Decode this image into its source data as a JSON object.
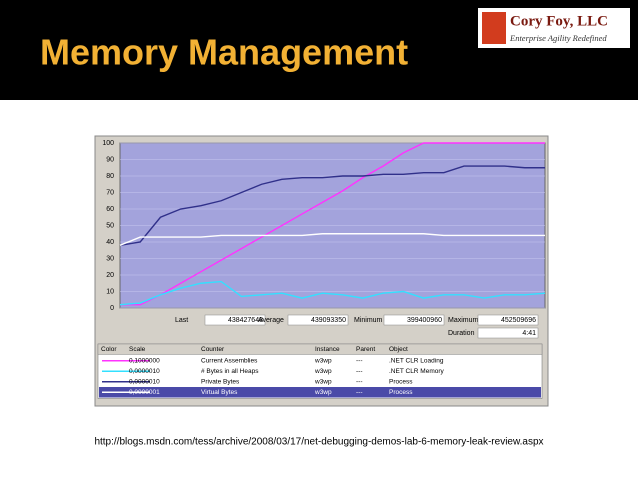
{
  "slide": {
    "title": "Memory Management",
    "logo": {
      "name": "Cory Foy, LLC",
      "tagline": "Enterprise Agility Redefined"
    },
    "url": "http://blogs.msdn.com/tess/archive/2008/03/17/net-debugging-demos-lab-6-memory-leak-review.aspx"
  },
  "chart_data": {
    "type": "line",
    "ylim": [
      0,
      100
    ],
    "yticks": [
      0,
      10,
      20,
      30,
      40,
      50,
      60,
      70,
      80,
      90,
      100
    ],
    "grid": true,
    "background": "#a3a3dc",
    "categories": [
      null,
      null,
      null,
      null,
      null,
      null,
      null,
      null,
      null,
      null,
      null,
      null,
      null,
      null,
      null,
      null,
      null,
      null,
      null,
      null,
      null,
      null
    ],
    "series": [
      {
        "name": "Current Assemblies",
        "color": "#ff33ff",
        "scale": "0,1000000",
        "instance": "w3wp",
        "parent": "---",
        "object": ".NET CLR Loading",
        "values": [
          2,
          2,
          8,
          15,
          22,
          29,
          36,
          43,
          50,
          57,
          64,
          71,
          79,
          86,
          94,
          100,
          100,
          100,
          100,
          100,
          100,
          100
        ]
      },
      {
        "name": "# Bytes in all Heaps",
        "color": "#33e0ff",
        "scale": "0,0000010",
        "instance": "w3wp",
        "parent": "---",
        "object": ".NET CLR Memory",
        "values": [
          2,
          3,
          8,
          12,
          15,
          16,
          7,
          8,
          9,
          6,
          9,
          8,
          6,
          9,
          10,
          6,
          8,
          8,
          6,
          8,
          8,
          9
        ]
      },
      {
        "name": "Private Bytes",
        "color": "#30308a",
        "scale": "0,0000010",
        "instance": "w3wp",
        "parent": "---",
        "object": "Process",
        "values": [
          38,
          40,
          55,
          60,
          62,
          65,
          70,
          75,
          78,
          79,
          79,
          80,
          80,
          81,
          81,
          82,
          82,
          86,
          86,
          86,
          85,
          85
        ]
      },
      {
        "name": "Virtual Bytes",
        "color": "#ffffff",
        "scale": "0,0000001",
        "instance": "w3wp",
        "parent": "---",
        "object": "Process",
        "values": [
          38,
          43,
          43,
          43,
          43,
          44,
          44,
          44,
          44,
          44,
          45,
          45,
          45,
          45,
          45,
          45,
          44,
          44,
          44,
          44,
          44,
          44
        ]
      }
    ],
    "selected": 3,
    "stats": [
      {
        "label": "Last",
        "value": "438427648"
      },
      {
        "label": "Average",
        "value": "439093350"
      },
      {
        "label": "Minimum",
        "value": "399400960"
      },
      {
        "label": "Maximum",
        "value": "452509696"
      },
      {
        "label": "Duration",
        "value": "4:41"
      }
    ],
    "columns": [
      "Color",
      "Scale",
      "Counter",
      "Instance",
      "Parent",
      "Object"
    ]
  }
}
